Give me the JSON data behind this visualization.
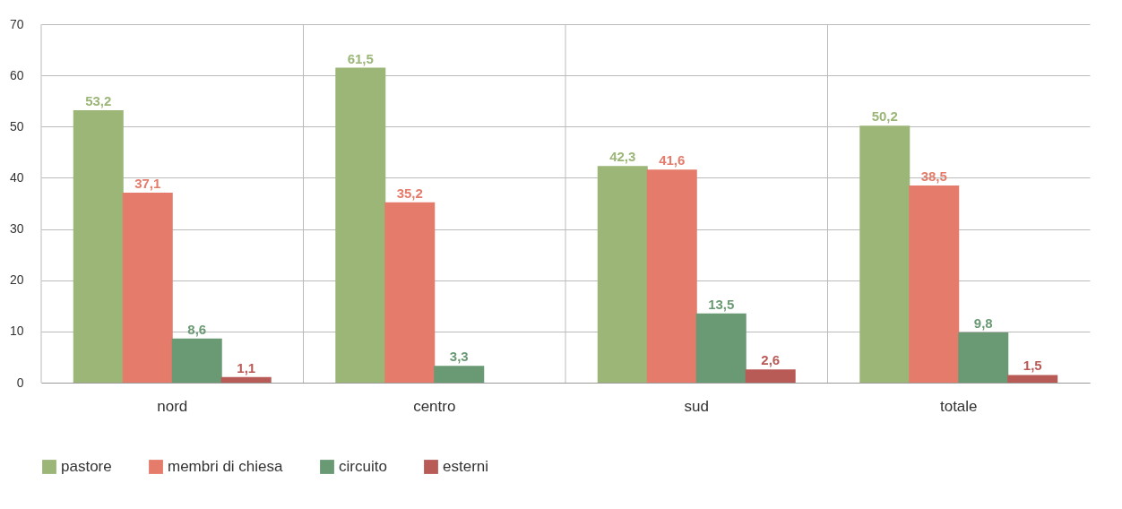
{
  "chart_data": {
    "type": "bar",
    "categories": [
      "nord",
      "centro",
      "sud",
      "totale"
    ],
    "series": [
      {
        "name": "pastore",
        "color": "#9bb677",
        "values": [
          53.2,
          61.5,
          42.3,
          50.2
        ],
        "value_labels": [
          "53,2",
          "61,5",
          "42,3",
          "50,2"
        ]
      },
      {
        "name": "membri di chiesa",
        "color": "#e57b6a",
        "values": [
          37.1,
          35.2,
          41.6,
          38.5
        ],
        "value_labels": [
          "37,1",
          "35,2",
          "41,6",
          "38,5"
        ]
      },
      {
        "name": "circuito",
        "color": "#6a9a74",
        "values": [
          8.6,
          3.3,
          13.5,
          9.8
        ],
        "value_labels": [
          "8,6",
          "3,3",
          "13,5",
          "9,8"
        ]
      },
      {
        "name": "esterni",
        "color": "#b85a56",
        "values": [
          1.1,
          0,
          2.6,
          1.5
        ],
        "value_labels": [
          "1,1",
          null,
          "2,6",
          "1,5"
        ]
      }
    ],
    "ylim": [
      0,
      70
    ],
    "yticks": [
      0,
      10,
      20,
      30,
      40,
      50,
      60,
      70
    ],
    "grid": true,
    "legend": "bottom left"
  }
}
